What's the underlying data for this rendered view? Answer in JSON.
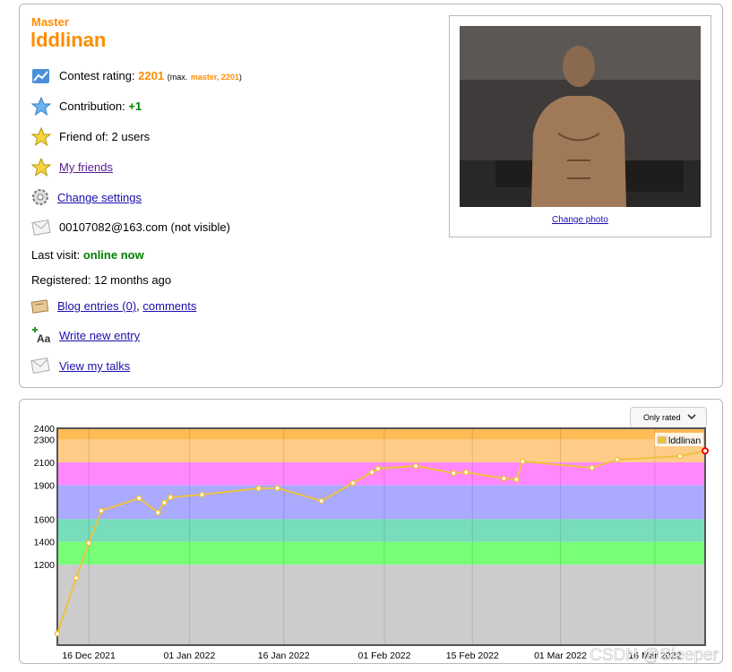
{
  "profile": {
    "rank": "Master",
    "handle": "lddlinan",
    "rating_label": "Contest rating:",
    "rating": "2201",
    "rating_max_open": "(max.",
    "rating_max_rank": "master, 2201",
    "rating_max_close": ")",
    "contribution_label": "Contribution:",
    "contribution": "+1",
    "friend_of": "Friend of: 2 users",
    "my_friends": "My friends",
    "change_settings": "Change settings",
    "email": "00107082@163.com (not visible)",
    "last_visit_label": "Last visit:",
    "last_visit": "online now",
    "registered": "Registered: 12 months ago",
    "blog_entries": "Blog entries (0)",
    "blog_sep": ",",
    "comments": "comments",
    "write_entry": "Write new entry",
    "view_talks": "View my talks",
    "change_photo": "Change photo"
  },
  "chart_data": {
    "type": "line",
    "button": "Only rated",
    "watermark": "CSDN @Sleeper",
    "legend": "top-right",
    "x": [
      "2021-12-11",
      "2021-12-14",
      "2021-12-16",
      "2021-12-18",
      "2021-12-24",
      "2021-12-27",
      "2021-12-28",
      "2021-12-29",
      "2022-01-03",
      "2022-01-12",
      "2022-01-15",
      "2022-01-22",
      "2022-01-27",
      "2022-01-30",
      "2022-01-31",
      "2022-02-06",
      "2022-02-12",
      "2022-02-14",
      "2022-02-20",
      "2022-02-22",
      "2022-02-23",
      "2022-03-06",
      "2022-03-10",
      "2022-03-20",
      "2022-03-24"
    ],
    "series": [
      {
        "name": "lddlinan",
        "color": "#edc240",
        "values": [
          592,
          1082,
          1389,
          1674,
          1784,
          1658,
          1745,
          1792,
          1816,
          1871,
          1873,
          1760,
          1918,
          2013,
          2045,
          2068,
          2005,
          2013,
          1958,
          1950,
          2108,
          2053,
          2124,
          2155,
          2201
        ]
      }
    ],
    "xlim": [
      "2021-12-11",
      "2022-03-24"
    ],
    "xticks": [
      {
        "value": "2021-12-16",
        "label": "16 Dec 2021"
      },
      {
        "value": "2022-01-01",
        "label": "01 Jan 2022"
      },
      {
        "value": "2022-01-16",
        "label": "16 Jan 2022"
      },
      {
        "value": "2022-02-01",
        "label": "01 Feb 2022"
      },
      {
        "value": "2022-02-15",
        "label": "15 Feb 2022"
      },
      {
        "value": "2022-03-01",
        "label": "01 Mar 2022"
      },
      {
        "value": "2022-03-16",
        "label": "16 Mar 2022"
      }
    ],
    "ylim": [
      490,
      2400
    ],
    "yticks": [
      1200,
      1400,
      1600,
      1900,
      2100,
      2300,
      2400
    ],
    "grid": "x",
    "bands": [
      {
        "from": 490,
        "to": 1200,
        "color": "#cccccc"
      },
      {
        "from": 1200,
        "to": 1400,
        "color": "#77ff77"
      },
      {
        "from": 1400,
        "to": 1600,
        "color": "#77ddbb"
      },
      {
        "from": 1600,
        "to": 1900,
        "color": "#aaaaff"
      },
      {
        "from": 1900,
        "to": 2100,
        "color": "#ff88ff"
      },
      {
        "from": 2100,
        "to": 2300,
        "color": "#ffcc88"
      },
      {
        "from": 2300,
        "to": 2400,
        "color": "#ffbb55"
      }
    ]
  }
}
